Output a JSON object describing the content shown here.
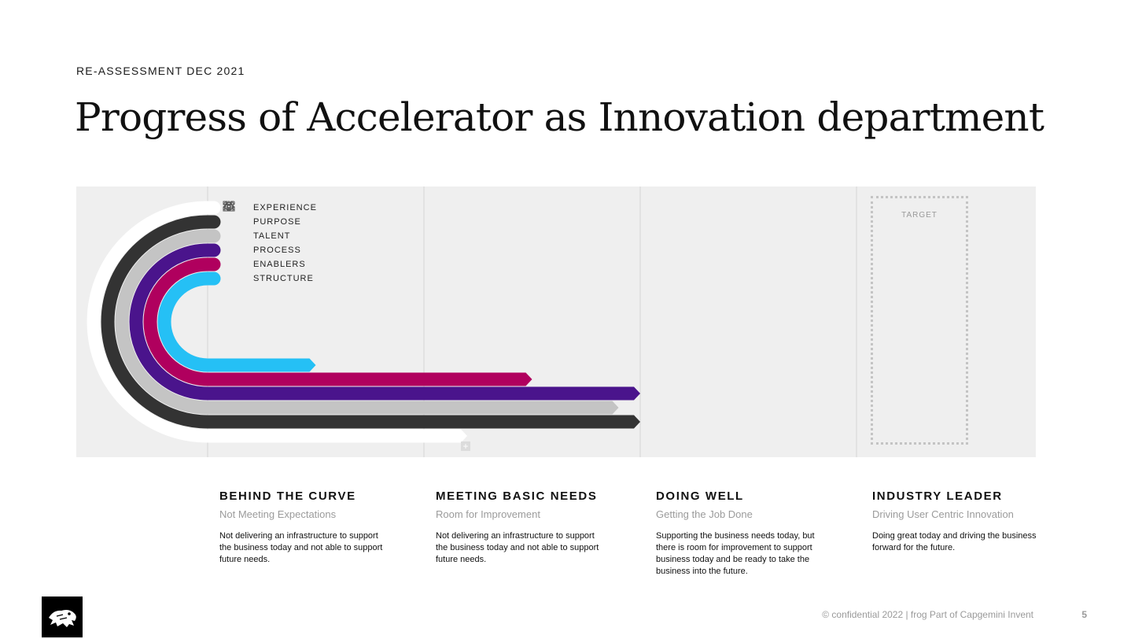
{
  "slide": {
    "kicker": "RE-ASSESSMENT DEC 2021",
    "title": "Progress of Accelerator as Innovation department"
  },
  "legend": [
    {
      "label": "EXPERIENCE",
      "icon": "experience-icon",
      "color": "#ffffff"
    },
    {
      "label": "PURPOSE",
      "icon": "eye-icon",
      "color": "#333333"
    },
    {
      "label": "TALENT",
      "icon": "people-icon",
      "color": "#c4c4c4"
    },
    {
      "label": "PROCESS",
      "icon": "cycle-icon",
      "color": "#4a148c"
    },
    {
      "label": "ENABLERS",
      "icon": "gear-icon",
      "color": "#b0005e"
    },
    {
      "label": "STRUCTURE",
      "icon": "house-icon",
      "color": "#25c0f5"
    }
  ],
  "target": {
    "label": "TARGET"
  },
  "stages": [
    {
      "heading": "BEHIND THE CURVE",
      "subheading": "Not Meeting Expectations",
      "description": "Not delivering an infrastructure to support the business today and not able to support future needs."
    },
    {
      "heading": "MEETING BASIC NEEDS",
      "subheading": "Room for Improvement",
      "description": "Not delivering an infrastructure to support the business today and not able to support future needs."
    },
    {
      "heading": "DOING WELL",
      "subheading": "Getting the Job Done",
      "description": "Supporting the business needs today, but there is room for improvement to support business today and be ready to take the business into the future."
    },
    {
      "heading": "INDUSTRY LEADER",
      "subheading": "Driving User Centric Innovation",
      "description": "Doing great today and driving the business forward for the future."
    }
  ],
  "chart_data": {
    "type": "bar",
    "categories": [
      "EXPERIENCE",
      "PURPOSE",
      "TALENT",
      "PROCESS",
      "ENABLERS",
      "STRUCTURE"
    ],
    "scale_levels": [
      "BEHIND THE CURVE",
      "MEETING BASIC NEEDS",
      "DOING WELL",
      "INDUSTRY LEADER"
    ],
    "values": [
      1.2,
      2.0,
      1.9,
      2.0,
      1.5,
      0.5
    ],
    "xlim": [
      0,
      3.3
    ],
    "colors": [
      "#ffffff",
      "#333333",
      "#c4c4c4",
      "#4a148c",
      "#b0005e",
      "#25c0f5"
    ],
    "target_level": 4
  },
  "footer": {
    "text": "© confidential 2022 | frog Part of Capgemini Invent",
    "page": "5"
  }
}
